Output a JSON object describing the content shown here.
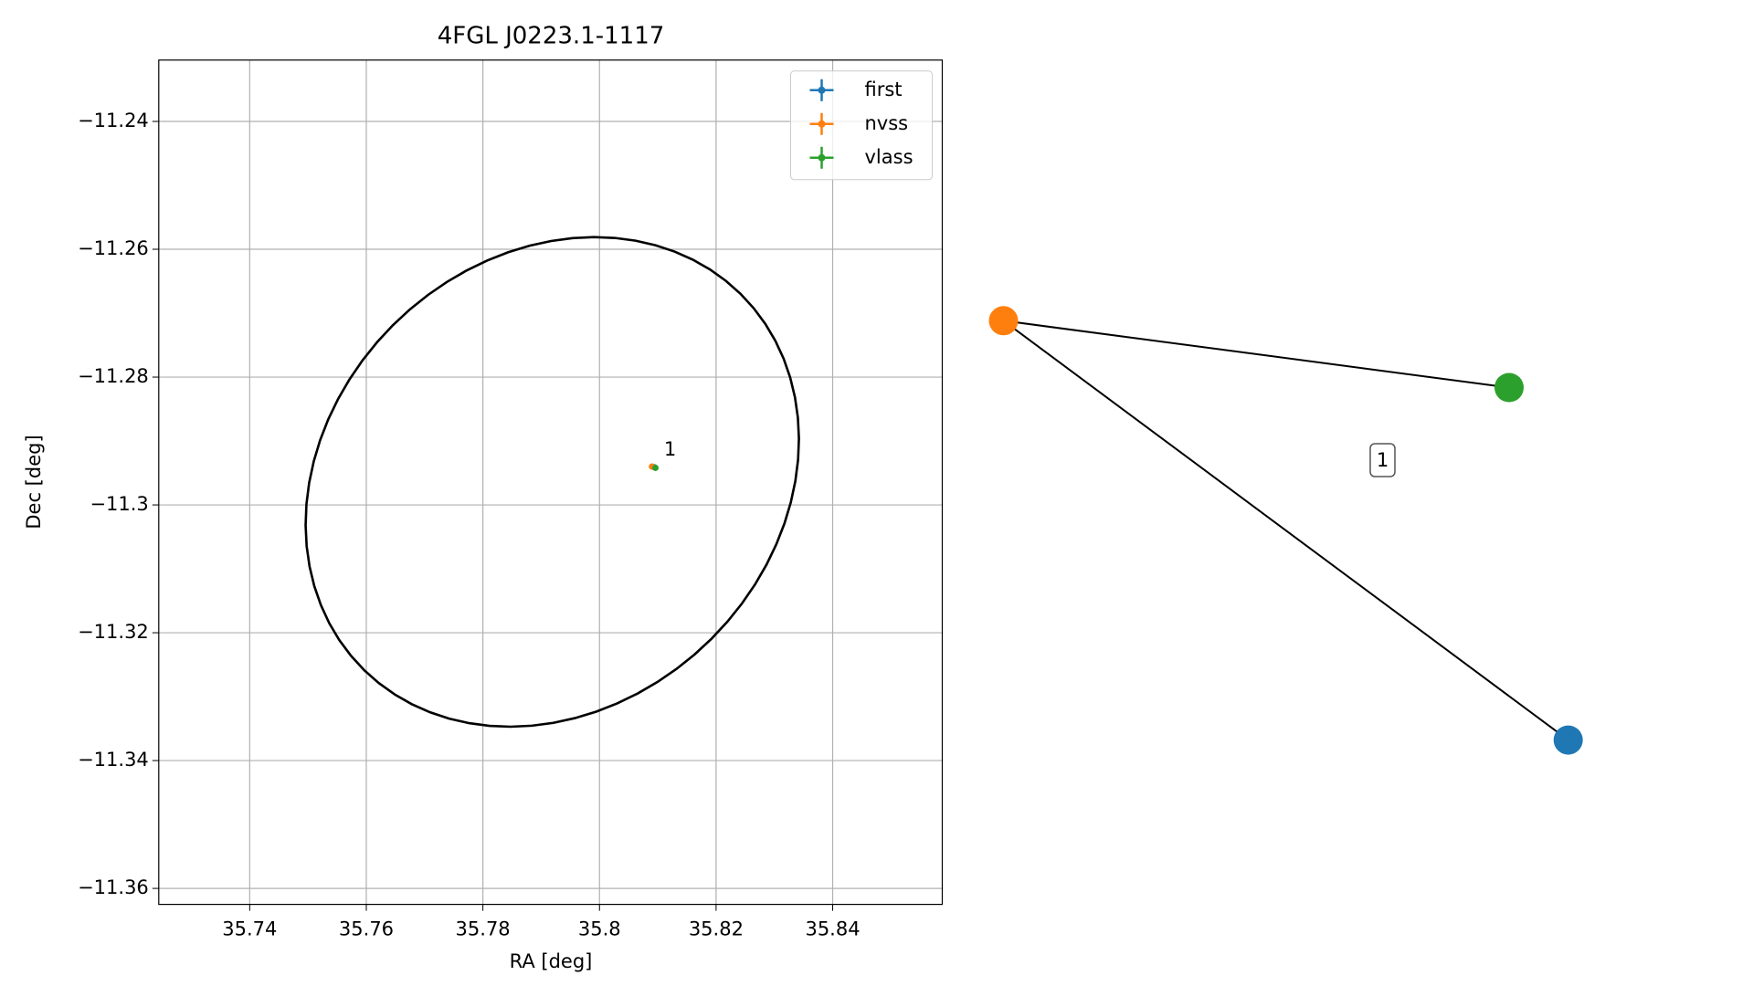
{
  "chart_data": {
    "type": "scatter",
    "title": "4FGL J0223.1-1117",
    "xlabel": "RA [deg]",
    "ylabel": "Dec [deg]",
    "xlim": [
      35.7244,
      35.8588
    ],
    "ylim": [
      -11.3625,
      -11.2304
    ],
    "xticks": [
      35.74,
      35.76,
      35.78,
      35.8,
      35.82,
      35.84
    ],
    "yticks": [
      -11.24,
      -11.26,
      -11.28,
      -11.3,
      -11.32,
      -11.34,
      -11.36
    ],
    "grid": true,
    "legend": "upper right",
    "series": [
      {
        "name": "first",
        "color": "#1f77b4",
        "x": [
          35.8094
        ],
        "values": [
          -11.2941
        ]
      },
      {
        "name": "nvss",
        "color": "#ff7f0e",
        "x": [
          35.809
        ],
        "values": [
          -11.294
        ]
      },
      {
        "name": "vlass",
        "color": "#2ca02c",
        "x": [
          35.8096
        ],
        "values": [
          -11.2942
        ]
      }
    ],
    "ellipse": {
      "ra": 35.7919,
      "dec": -11.2964,
      "a": 0.04418,
      "b": 0.03613,
      "angle": 30
    },
    "annotations": [
      {
        "text": "1",
        "x": 35.8095,
        "y": -11.294
      }
    ]
  },
  "graph": {
    "label": "1"
  }
}
